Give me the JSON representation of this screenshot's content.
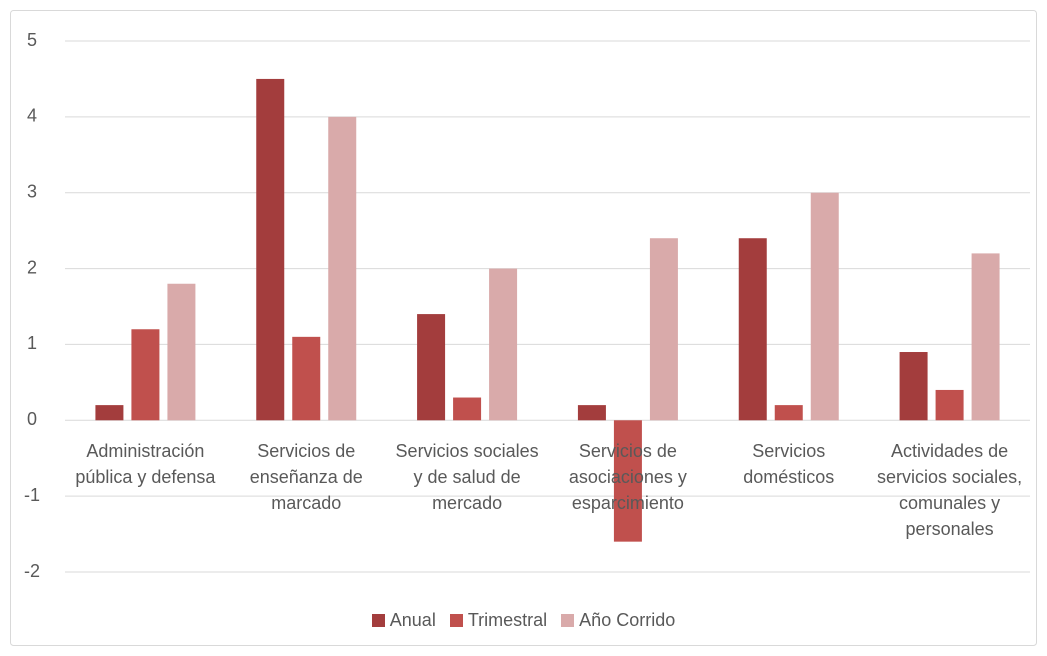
{
  "chart_data": {
    "type": "bar",
    "categories": [
      "Administración pública y defensa",
      "Servicios de enseñanza de marcado",
      "Servicios sociales y de salud de mercado",
      "Servicios de asociaciones y esparcimiento",
      "Servicios domésticos",
      "Actividades de servicios sociales, comunales y personales"
    ],
    "series": [
      {
        "name": "Anual",
        "color": "#a33d3d",
        "values": [
          0.2,
          4.5,
          1.4,
          0.2,
          2.4,
          0.9
        ]
      },
      {
        "name": "Trimestral",
        "color": "#c0504d",
        "values": [
          1.2,
          1.1,
          0.3,
          -1.6,
          0.2,
          0.4
        ]
      },
      {
        "name": "Año Corrido",
        "color": "#d9aaaa",
        "values": [
          1.8,
          4.0,
          2.0,
          2.4,
          3.0,
          2.2
        ]
      }
    ],
    "ylim": [
      -2,
      5
    ],
    "yticks": [
      -2,
      -1,
      0,
      1,
      2,
      3,
      4,
      5
    ],
    "grid": true,
    "legend": "bottom"
  }
}
